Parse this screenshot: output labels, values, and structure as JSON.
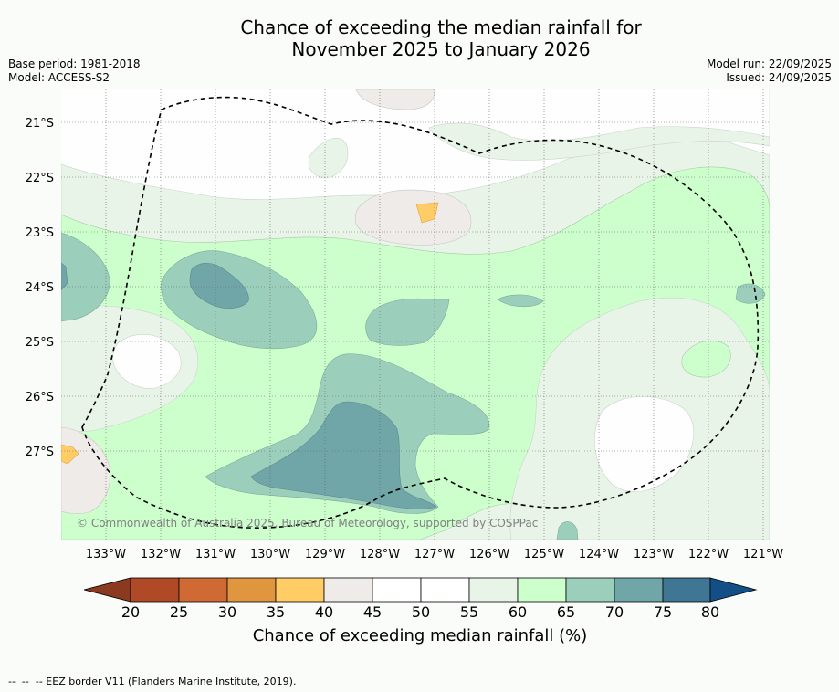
{
  "title": {
    "line1": "Chance of exceeding the median rainfall for",
    "line2": "November 2025 to January 2026"
  },
  "meta": {
    "base_period": "Base period: 1981-2018",
    "model": "Model: ACCESS-S2",
    "model_run": "Model run: 22/09/2025",
    "issued": "Issued: 24/09/2025"
  },
  "axes": {
    "lat_labels": [
      "21°S",
      "22°S",
      "23°S",
      "24°S",
      "25°S",
      "26°S",
      "27°S"
    ],
    "lon_labels": [
      "133°W",
      "132°W",
      "131°W",
      "130°W",
      "129°W",
      "128°W",
      "127°W",
      "126°W",
      "125°W",
      "124°W",
      "123°W",
      "122°W",
      "121°W"
    ]
  },
  "copyright": "© Commonwealth of Australia 2025, Bureau of Meteorology, supported by COSPPac",
  "colorbar": {
    "ticks": [
      "20",
      "25",
      "30",
      "35",
      "40",
      "45",
      "50",
      "55",
      "60",
      "65",
      "70",
      "75",
      "80"
    ],
    "label": "Chance of exceeding median rainfall (%)",
    "colors": {
      "below_20": "#8c3a1f",
      "c20_25": "#b04a26",
      "c25_30": "#d06a35",
      "c30_35": "#e0953f",
      "c35_40": "#ffcc66",
      "c40_45": "#efebe8",
      "c45_50": "#ffffff",
      "c50_55": "#ffffff",
      "c55_60": "#e9f4e8",
      "c60_65": "#ccffcc",
      "c65_70": "#9ccfbb",
      "c70_75": "#70a6a7",
      "c75_80": "#3f7694",
      "above_80": "#134f86"
    }
  },
  "footer": "--  --  -- EEZ border V11 (Flanders Marine Institute, 2019)."
}
